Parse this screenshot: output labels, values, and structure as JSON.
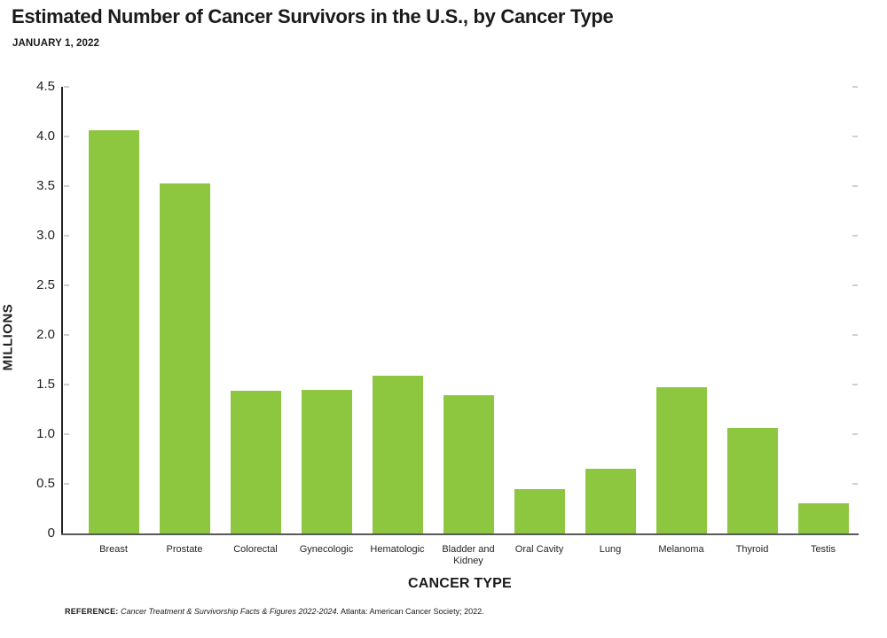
{
  "header": {
    "title": "Estimated Number of Cancer Survivors in the U.S., by Cancer Type",
    "subtitle": "JANUARY 1, 2022"
  },
  "chart_data": {
    "type": "bar",
    "title": "Estimated Number of Cancer Survivors in the U.S., by Cancer Type",
    "subtitle": "JANUARY 1, 2022",
    "categories": [
      "Breast",
      "Prostate",
      "Colorectal",
      "Gynecologic",
      "Hematologic",
      "Bladder and Kidney",
      "Oral Cavity",
      "Lung",
      "Melanoma",
      "Thyroid",
      "Testis"
    ],
    "values": [
      4.06,
      3.53,
      1.44,
      1.45,
      1.59,
      1.39,
      0.45,
      0.65,
      1.47,
      1.06,
      0.3
    ],
    "xlabel": "CANCER TYPE",
    "ylabel": "MILLIONS",
    "ylim": [
      0,
      4.5
    ],
    "yticks": [
      {
        "v": 4.5,
        "label": "4.5"
      },
      {
        "v": 4.0,
        "label": "4.0"
      },
      {
        "v": 3.5,
        "label": "3.5"
      },
      {
        "v": 3.0,
        "label": "3.0"
      },
      {
        "v": 2.5,
        "label": "2.5"
      },
      {
        "v": 2.0,
        "label": "2.0"
      },
      {
        "v": 1.5,
        "label": "1.5"
      },
      {
        "v": 1.0,
        "label": "1.0"
      },
      {
        "v": 0.5,
        "label": "0.5"
      },
      {
        "v": 0,
        "label": "0"
      }
    ],
    "grid": false,
    "legend": null,
    "bar_color": "#8DC63F"
  },
  "footer": {
    "reference_label": "REFERENCE:",
    "reference_italic": "Cancer Treatment & Survivorship Facts & Figures 2022-2024.",
    "reference_rest": "Atlanta: American Cancer Society; 2022."
  },
  "colors": {
    "bar": "#8DC63F",
    "axis": "#231F20",
    "baseline": "#58595B",
    "tick_mark": "#CFCFCF",
    "text": "#1a1a1a"
  }
}
